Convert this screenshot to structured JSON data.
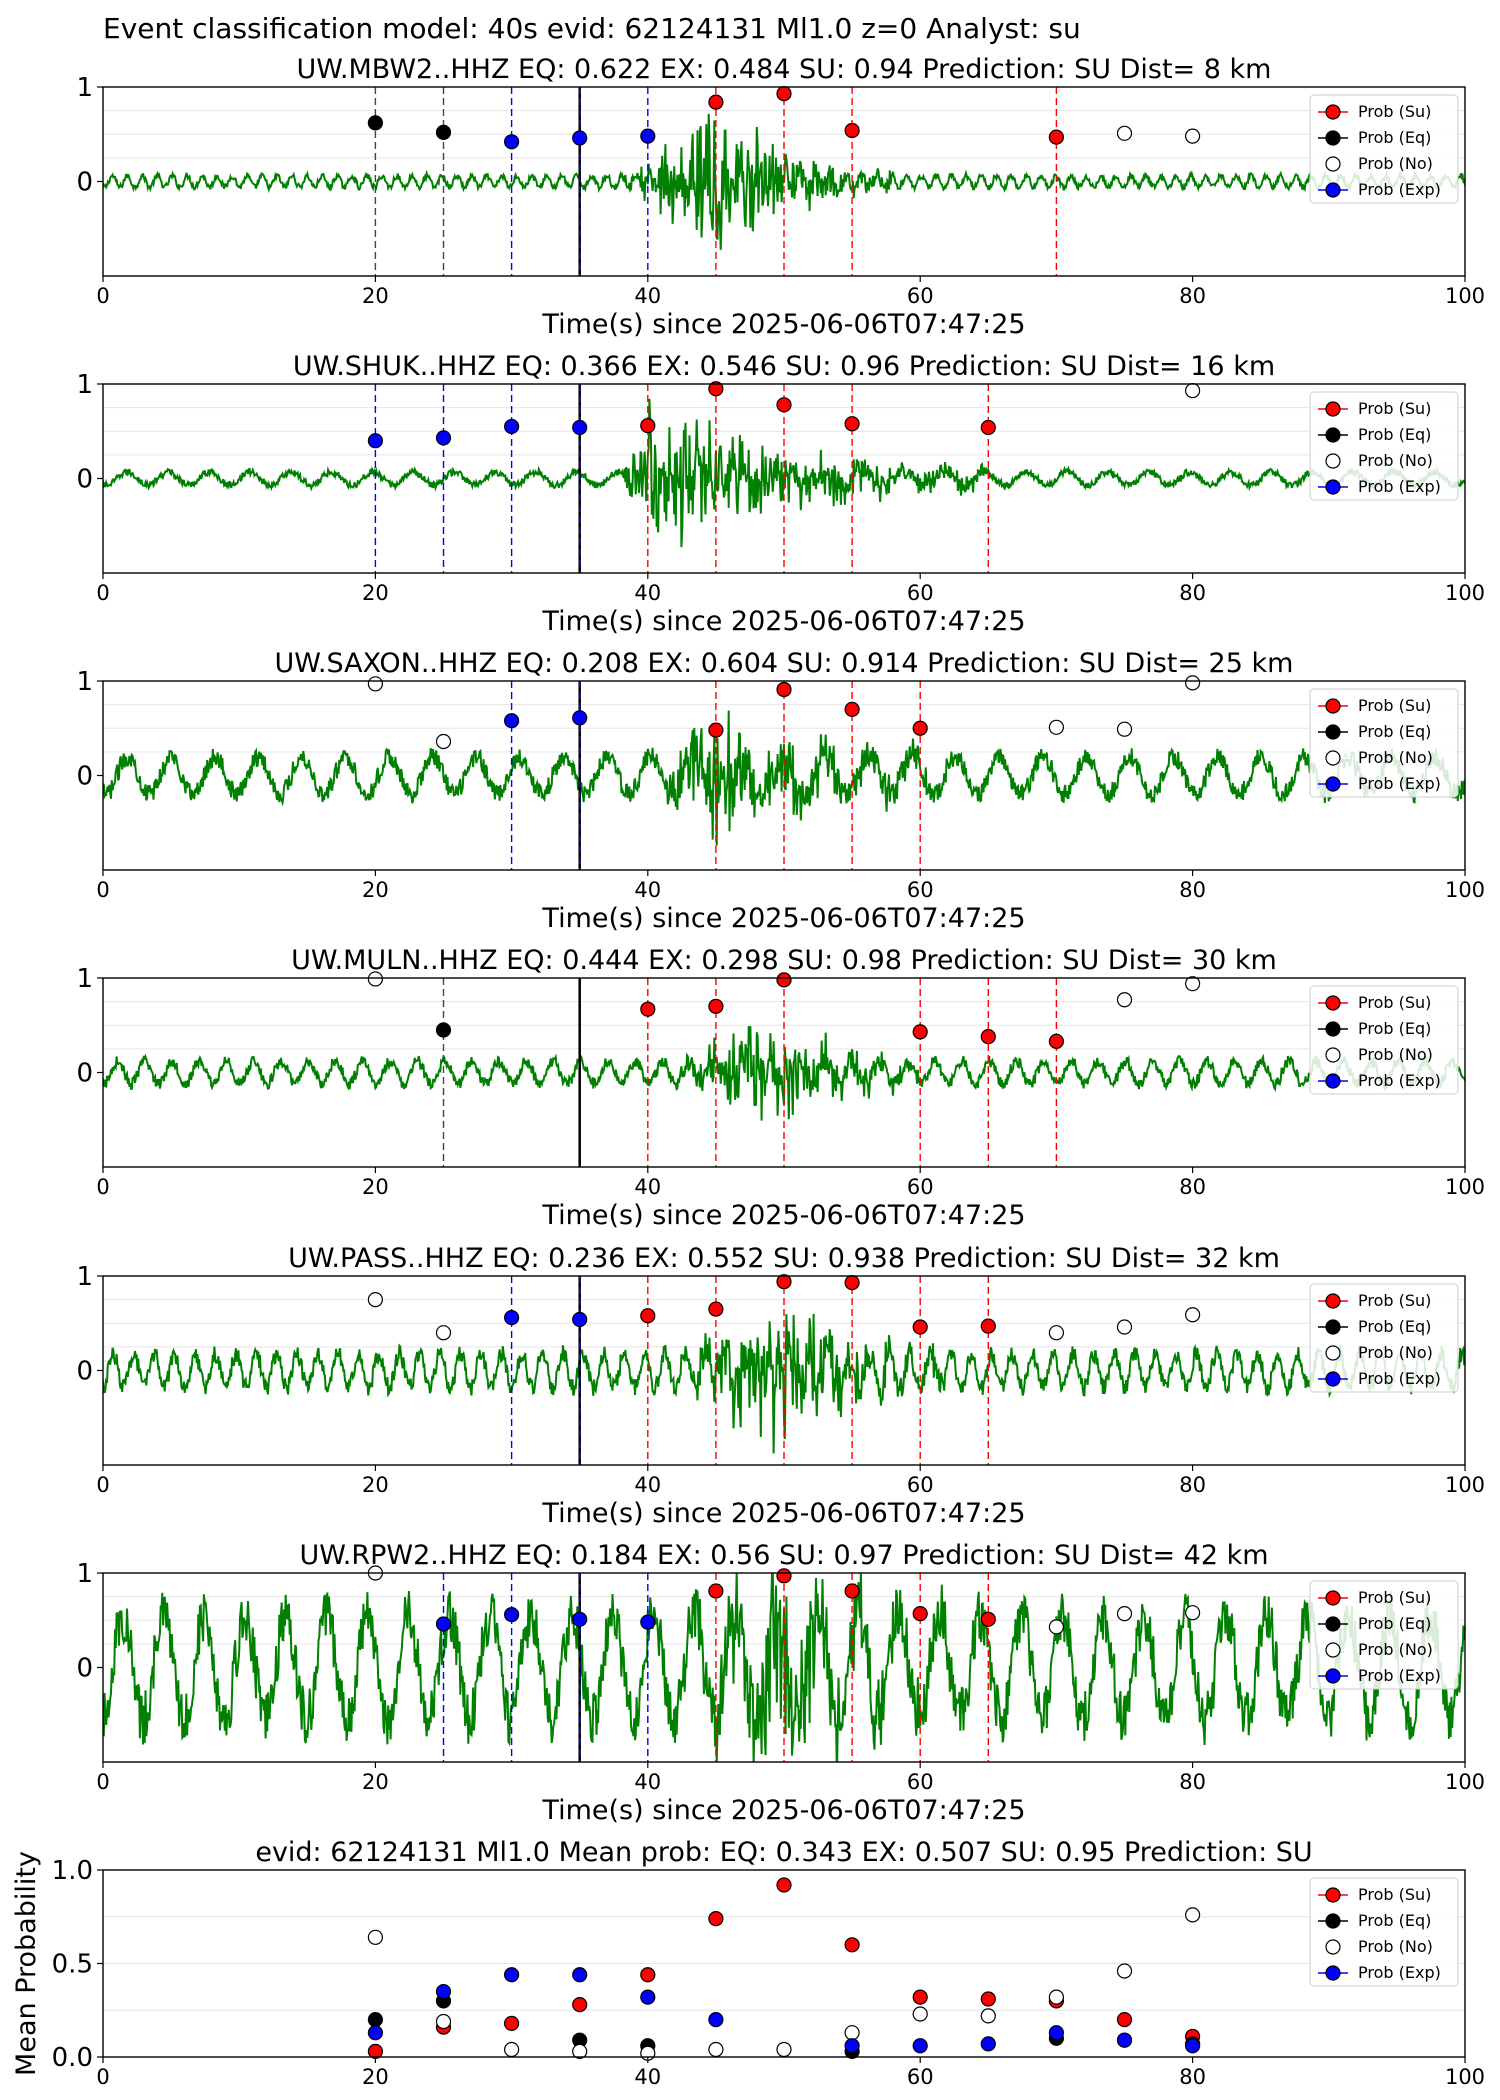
{
  "suptitle": "Event classification model: 40s evid: 62124131 Ml1.0 z=0 Analyst: su",
  "legend": [
    {
      "label": "Prob (Su)",
      "color": "#ff0000",
      "hollow": false
    },
    {
      "label": "Prob (Eq)",
      "color": "#000000",
      "hollow": false
    },
    {
      "label": "Prob (No)",
      "color": "#000000",
      "hollow": true
    },
    {
      "label": "Prob (Exp)",
      "color": "#0000ff",
      "hollow": false
    }
  ],
  "colors": {
    "waveform": "#008000",
    "su": "#ff0000",
    "eq": "#000000",
    "exp": "#0000ff",
    "no": "#000000",
    "onset": "#000000"
  },
  "chart_data": [
    {
      "type": "scatter",
      "title": "UW.MBW2..HHZ   EQ: 0.622  EX: 0.484  SU: 0.94   Prediction: SU    Dist= 8 km",
      "xlabel": "Time(s) since 2025-06-06T07:47:25",
      "ylabel": "",
      "xlim": [
        0,
        100
      ],
      "ylim": [
        -1,
        1
      ],
      "yticks": [
        "1",
        "0"
      ],
      "xticks": [
        "0",
        "20",
        "40",
        "60",
        "80",
        "100"
      ],
      "onset": 35,
      "waveform": {
        "start": 38,
        "end": 58,
        "peak": 45,
        "amp": 0.92,
        "noise": 0.06,
        "period": 1.1
      },
      "series": [
        {
          "name": "Prob (Su)",
          "x": [
            45,
            50,
            55,
            70
          ],
          "y": [
            0.84,
            0.93,
            0.54,
            0.47
          ]
        },
        {
          "name": "Prob (Eq)",
          "x": [
            20,
            25
          ],
          "y": [
            0.62,
            0.52
          ]
        },
        {
          "name": "Prob (No)",
          "x": [
            75,
            80
          ],
          "y": [
            0.51,
            0.48
          ]
        },
        {
          "name": "Prob (Exp)",
          "x": [
            30,
            35,
            40
          ],
          "y": [
            0.42,
            0.46,
            0.48
          ]
        }
      ]
    },
    {
      "type": "scatter",
      "title": "UW.SHUK..HHZ   EQ: 0.366  EX: 0.546  SU: 0.96   Prediction: SU    Dist= 16 km",
      "xlabel": "Time(s) since 2025-06-06T07:47:25",
      "ylabel": "",
      "xlim": [
        0,
        100
      ],
      "ylim": [
        -1,
        1
      ],
      "yticks": [
        "1",
        "0"
      ],
      "xticks": [
        "0",
        "20",
        "40",
        "60",
        "80",
        "100"
      ],
      "onset": 35,
      "waveform": {
        "start": 38,
        "end": 65,
        "peak": 40,
        "amp": 0.9,
        "noise": 0.07,
        "period": 3.0
      },
      "series": [
        {
          "name": "Prob (Su)",
          "x": [
            40,
            45,
            50,
            55,
            65
          ],
          "y": [
            0.56,
            0.95,
            0.78,
            0.58,
            0.54
          ]
        },
        {
          "name": "Prob (Eq)",
          "x": [],
          "y": []
        },
        {
          "name": "Prob (No)",
          "x": [
            80
          ],
          "y": [
            0.93
          ]
        },
        {
          "name": "Prob (Exp)",
          "x": [
            20,
            25,
            30,
            35
          ],
          "y": [
            0.4,
            0.43,
            0.55,
            0.54
          ]
        }
      ]
    },
    {
      "type": "scatter",
      "title": "UW.SAXON..HHZ   EQ: 0.208  EX: 0.604  SU: 0.914   Prediction: SU    Dist= 25 km",
      "xlabel": "Time(s) since 2025-06-06T07:47:25",
      "ylabel": "",
      "xlim": [
        0,
        100
      ],
      "ylim": [
        -1,
        1
      ],
      "yticks": [
        "1",
        "0"
      ],
      "xticks": [
        "0",
        "20",
        "40",
        "60",
        "80",
        "100"
      ],
      "onset": 35,
      "waveform": {
        "start": 40,
        "end": 62,
        "peak": 45,
        "amp": 0.78,
        "noise": 0.2,
        "period": 3.2
      },
      "series": [
        {
          "name": "Prob (Su)",
          "x": [
            45,
            50,
            55,
            60
          ],
          "y": [
            0.48,
            0.91,
            0.7,
            0.5
          ]
        },
        {
          "name": "Prob (Eq)",
          "x": [],
          "y": []
        },
        {
          "name": "Prob (No)",
          "x": [
            20,
            25,
            70,
            75,
            80
          ],
          "y": [
            0.97,
            0.36,
            0.51,
            0.49,
            0.98
          ]
        },
        {
          "name": "Prob (Exp)",
          "x": [
            30,
            35
          ],
          "y": [
            0.58,
            0.61
          ]
        }
      ]
    },
    {
      "type": "scatter",
      "title": "UW.MULN..HHZ   EQ: 0.444  EX: 0.298  SU: 0.98   Prediction: SU    Dist= 30 km",
      "xlabel": "Time(s) since 2025-06-06T07:47:25",
      "ylabel": "",
      "xlim": [
        0,
        100
      ],
      "ylim": [
        -1,
        1
      ],
      "yticks": [
        "1",
        "0"
      ],
      "xticks": [
        "0",
        "20",
        "40",
        "60",
        "80",
        "100"
      ],
      "onset": 35,
      "waveform": {
        "start": 42,
        "end": 60,
        "peak": 48,
        "amp": 0.75,
        "noise": 0.12,
        "period": 2.0
      },
      "series": [
        {
          "name": "Prob (Su)",
          "x": [
            40,
            45,
            50,
            60,
            65,
            70
          ],
          "y": [
            0.67,
            0.7,
            0.98,
            0.43,
            0.38,
            0.33
          ]
        },
        {
          "name": "Prob (Eq)",
          "x": [
            25
          ],
          "y": [
            0.45
          ]
        },
        {
          "name": "Prob (No)",
          "x": [
            20,
            75,
            80
          ],
          "y": [
            0.99,
            0.77,
            0.94
          ]
        },
        {
          "name": "Prob (Exp)",
          "x": [],
          "y": []
        }
      ]
    },
    {
      "type": "scatter",
      "title": "UW.PASS..HHZ   EQ: 0.236  EX: 0.552  SU: 0.938   Prediction: SU    Dist= 32 km",
      "xlabel": "Time(s) since 2025-06-06T07:47:25",
      "ylabel": "",
      "xlim": [
        0,
        100
      ],
      "ylim": [
        -1,
        1
      ],
      "yticks": [
        "1",
        "0"
      ],
      "xticks": [
        "0",
        "20",
        "40",
        "60",
        "80",
        "100"
      ],
      "onset": 35,
      "waveform": {
        "start": 42,
        "end": 62,
        "peak": 50,
        "amp": 0.85,
        "noise": 0.18,
        "period": 1.5
      },
      "series": [
        {
          "name": "Prob (Su)",
          "x": [
            40,
            45,
            50,
            55,
            60,
            65
          ],
          "y": [
            0.58,
            0.65,
            0.94,
            0.93,
            0.46,
            0.47
          ]
        },
        {
          "name": "Prob (Eq)",
          "x": [],
          "y": []
        },
        {
          "name": "Prob (No)",
          "x": [
            20,
            25,
            70,
            75,
            80
          ],
          "y": [
            0.75,
            0.4,
            0.4,
            0.46,
            0.59
          ]
        },
        {
          "name": "Prob (Exp)",
          "x": [
            30,
            35
          ],
          "y": [
            0.56,
            0.54
          ]
        }
      ]
    },
    {
      "type": "scatter",
      "title": "UW.RPW2..HHZ   EQ: 0.184  EX: 0.56  SU: 0.97   Prediction: SU    Dist= 42 km",
      "xlabel": "Time(s) since 2025-06-06T07:47:25",
      "ylabel": "",
      "xlim": [
        0,
        100
      ],
      "ylim": [
        -1,
        1
      ],
      "yticks": [
        "1",
        "0"
      ],
      "xticks": [
        "0",
        "20",
        "40",
        "60",
        "80",
        "100"
      ],
      "onset": 35,
      "waveform": {
        "start": 42,
        "end": 65,
        "peak": 50,
        "amp": 0.9,
        "noise": 0.55,
        "period": 3.0
      },
      "series": [
        {
          "name": "Prob (Su)",
          "x": [
            45,
            50,
            55,
            60,
            65
          ],
          "y": [
            0.81,
            0.97,
            0.81,
            0.57,
            0.51
          ]
        },
        {
          "name": "Prob (Eq)",
          "x": [],
          "y": []
        },
        {
          "name": "Prob (No)",
          "x": [
            20,
            70,
            75,
            80
          ],
          "y": [
            1.0,
            0.43,
            0.57,
            0.58
          ]
        },
        {
          "name": "Prob (Exp)",
          "x": [
            25,
            30,
            35,
            40
          ],
          "y": [
            0.46,
            0.56,
            0.51,
            0.48
          ]
        }
      ]
    },
    {
      "type": "scatter",
      "title": "evid: 62124131  Ml1.0   Mean prob:   EQ: 0.343  EX: 0.507  SU: 0.95   Prediction: SU",
      "xlabel": "",
      "ylabel": "Mean Probability",
      "xlim": [
        0,
        100
      ],
      "ylim": [
        0,
        1.0
      ],
      "yticks": [
        "1.0",
        "0.5",
        "0.0"
      ],
      "xticks": [
        "0",
        "20",
        "40",
        "60",
        "80",
        "100"
      ],
      "series": [
        {
          "name": "Prob (Su)",
          "x": [
            20,
            25,
            30,
            35,
            40,
            45,
            50,
            55,
            60,
            65,
            70,
            75,
            80
          ],
          "y": [
            0.03,
            0.16,
            0.18,
            0.28,
            0.44,
            0.74,
            0.92,
            0.6,
            0.32,
            0.31,
            0.3,
            0.2,
            0.11
          ]
        },
        {
          "name": "Prob (Eq)",
          "x": [
            20,
            25,
            35,
            40,
            55,
            70,
            75,
            80
          ],
          "y": [
            0.2,
            0.3,
            0.09,
            0.06,
            0.03,
            0.1,
            0.09,
            0.07
          ]
        },
        {
          "name": "Prob (No)",
          "x": [
            20,
            25,
            30,
            35,
            40,
            45,
            50,
            55,
            60,
            65,
            70,
            75,
            80
          ],
          "y": [
            0.64,
            0.19,
            0.04,
            0.03,
            0.02,
            0.04,
            0.04,
            0.13,
            0.23,
            0.22,
            0.32,
            0.46,
            0.76
          ]
        },
        {
          "name": "Prob (Exp)",
          "x": [
            20,
            25,
            30,
            35,
            40,
            45,
            55,
            60,
            65,
            70,
            75,
            80
          ],
          "y": [
            0.13,
            0.35,
            0.44,
            0.44,
            0.32,
            0.2,
            0.06,
            0.06,
            0.07,
            0.13,
            0.09,
            0.06
          ]
        }
      ]
    }
  ]
}
